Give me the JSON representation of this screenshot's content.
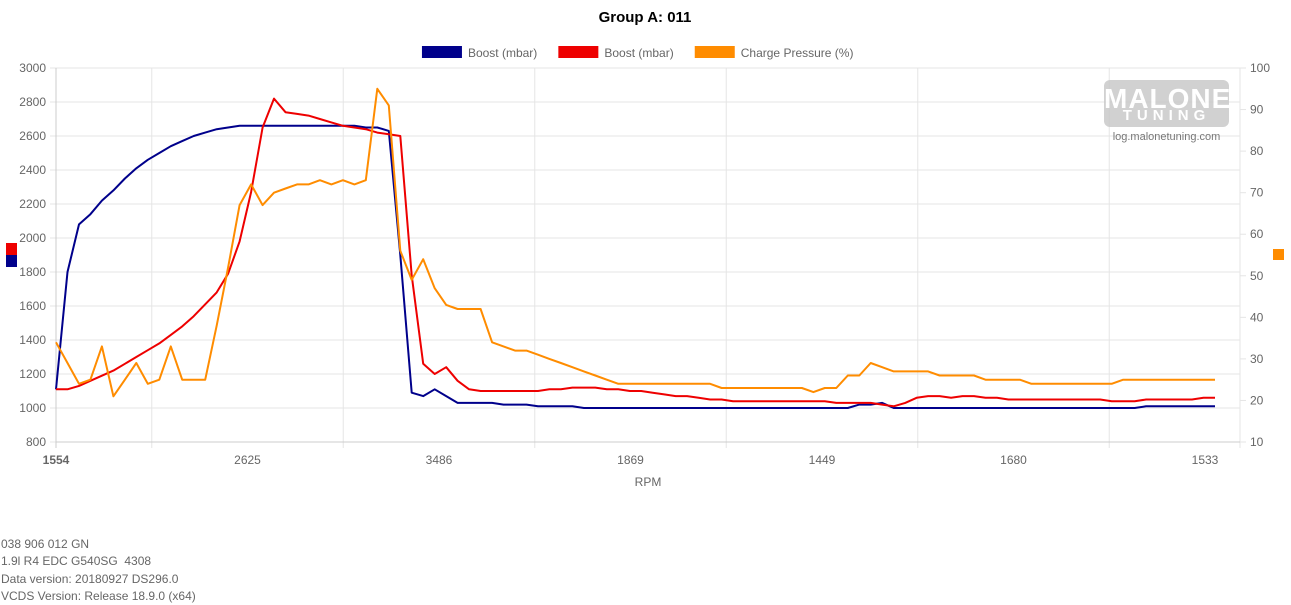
{
  "chart_data": {
    "type": "line",
    "title": "Group A: 011",
    "xlabel": "RPM",
    "x_tick_labels": [
      "1554",
      "2625",
      "3486",
      "1869",
      "1449",
      "1680",
      "1533"
    ],
    "y_left": {
      "min": 800,
      "max": 3000,
      "ticks": [
        "800",
        "1000",
        "1200",
        "1400",
        "1600",
        "1800",
        "2000",
        "2200",
        "2400",
        "2600",
        "2800",
        "3000"
      ]
    },
    "y_right": {
      "min": 10,
      "max": 100,
      "ticks": [
        "10",
        "20",
        "30",
        "40",
        "50",
        "60",
        "70",
        "80",
        "90",
        "100"
      ]
    },
    "legend_position": "top-center",
    "series": [
      {
        "name": "Boost (mbar)",
        "color": "#00008B",
        "axis": "left",
        "values": [
          1110,
          1800,
          2080,
          2140,
          2220,
          2280,
          2350,
          2410,
          2460,
          2500,
          2540,
          2570,
          2600,
          2620,
          2640,
          2650,
          2660,
          2660,
          2660,
          2660,
          2660,
          2660,
          2660,
          2660,
          2660,
          2660,
          2660,
          2650,
          2650,
          2630,
          1900,
          1090,
          1070,
          1110,
          1070,
          1030,
          1030,
          1030,
          1030,
          1020,
          1020,
          1020,
          1010,
          1010,
          1010,
          1010,
          1000,
          1000,
          1000,
          1000,
          1000,
          1000,
          1000,
          1000,
          1000,
          1000,
          1000,
          1000,
          1000,
          1000,
          1000,
          1000,
          1000,
          1000,
          1000,
          1000,
          1000,
          1000,
          1000,
          1000,
          1020,
          1020,
          1030,
          1000,
          1000,
          1000,
          1000,
          1000,
          1000,
          1000,
          1000,
          1000,
          1000,
          1000,
          1000,
          1000,
          1000,
          1000,
          1000,
          1000,
          1000,
          1000,
          1000,
          1000,
          1000,
          1010,
          1010,
          1010,
          1010,
          1010,
          1010,
          1010
        ]
      },
      {
        "name": "Boost (mbar)",
        "color": "#EE0000",
        "axis": "left",
        "values": [
          1110,
          1110,
          1130,
          1160,
          1190,
          1220,
          1260,
          1300,
          1340,
          1380,
          1430,
          1480,
          1540,
          1610,
          1680,
          1790,
          1980,
          2270,
          2650,
          2820,
          2740,
          2730,
          2720,
          2700,
          2680,
          2660,
          2650,
          2640,
          2620,
          2610,
          2600,
          1780,
          1260,
          1200,
          1240,
          1160,
          1110,
          1100,
          1100,
          1100,
          1100,
          1100,
          1100,
          1110,
          1110,
          1120,
          1120,
          1120,
          1110,
          1110,
          1100,
          1100,
          1090,
          1080,
          1070,
          1070,
          1060,
          1050,
          1050,
          1040,
          1040,
          1040,
          1040,
          1040,
          1040,
          1040,
          1040,
          1040,
          1030,
          1030,
          1030,
          1030,
          1020,
          1010,
          1030,
          1060,
          1070,
          1070,
          1060,
          1070,
          1070,
          1060,
          1060,
          1050,
          1050,
          1050,
          1050,
          1050,
          1050,
          1050,
          1050,
          1050,
          1040,
          1040,
          1040,
          1050,
          1050,
          1050,
          1050,
          1050,
          1060,
          1060
        ]
      },
      {
        "name": "Charge Pressure (%)",
        "color": "#FF8C00",
        "axis": "right",
        "values": [
          34,
          29,
          24,
          25,
          33,
          21,
          25,
          29,
          24,
          25,
          33,
          25,
          25,
          25,
          38,
          52,
          67,
          72,
          67,
          70,
          71,
          72,
          72,
          73,
          72,
          73,
          72,
          73,
          95,
          91,
          56,
          49,
          54,
          47,
          43,
          42,
          42,
          42,
          34,
          33,
          32,
          32,
          31,
          30,
          29,
          28,
          27,
          26,
          25,
          24,
          24,
          24,
          24,
          24,
          24,
          24,
          24,
          24,
          23,
          23,
          23,
          23,
          23,
          23,
          23,
          23,
          22,
          23,
          23,
          26,
          26,
          29,
          28,
          27,
          27,
          27,
          27,
          26,
          26,
          26,
          26,
          25,
          25,
          25,
          25,
          24,
          24,
          24,
          24,
          24,
          24,
          24,
          24,
          25,
          25,
          25,
          25,
          25,
          25,
          25,
          25,
          25
        ]
      }
    ]
  },
  "watermark": {
    "brand": "MALONE",
    "sub": "TUNING",
    "url": "log.malonetuning.com"
  },
  "footer": {
    "line1": "038 906 012 GN",
    "line2": "1.9l R4 EDC G540SG  4308",
    "line3": "Data version: 20180927 DS296.0",
    "line4": "VCDS Version: Release 18.9.0 (x64)"
  }
}
